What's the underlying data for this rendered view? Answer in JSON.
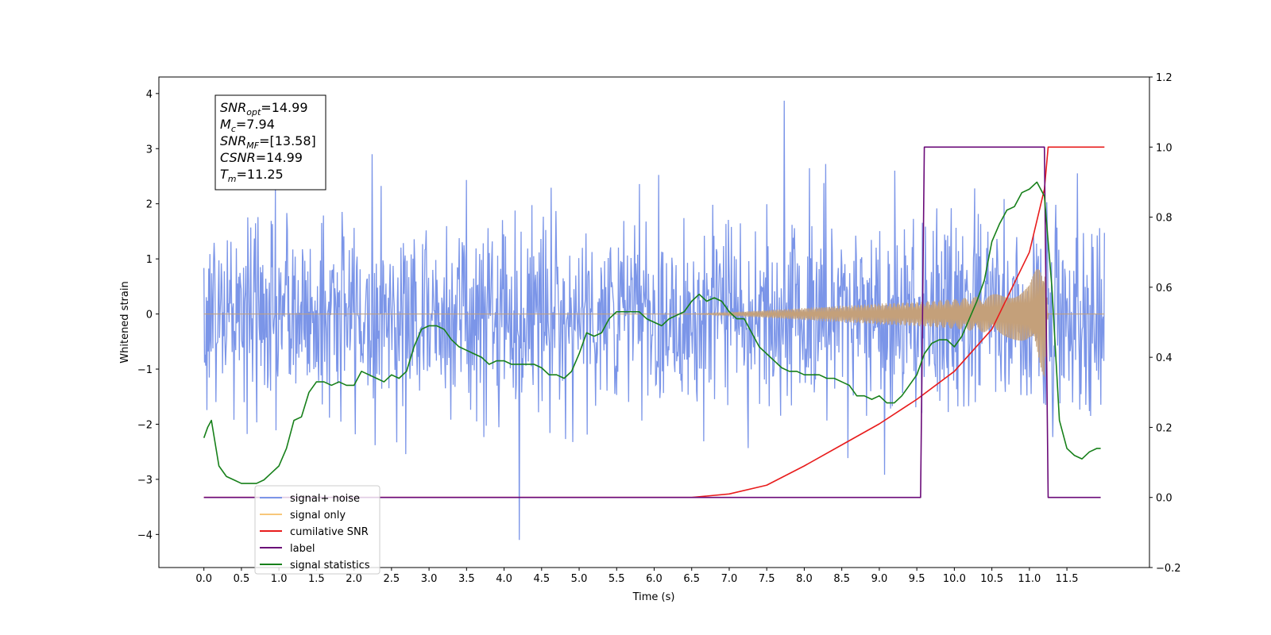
{
  "chart_data": {
    "type": "line",
    "title": "",
    "xlabel": "Time (s)",
    "ylabel": "Whitened strain",
    "y2label": "",
    "xlim": [
      -0.6,
      12.6
    ],
    "ylim": [
      -4.6,
      4.3
    ],
    "y2lim": [
      -0.2,
      1.2
    ],
    "xticks": [
      0.0,
      0.5,
      1.0,
      1.5,
      2.0,
      2.5,
      3.0,
      3.5,
      4.0,
      4.5,
      5.0,
      5.5,
      6.0,
      6.5,
      7.0,
      7.5,
      8.0,
      8.5,
      9.0,
      9.5,
      10.0,
      10.5,
      11.0,
      11.5
    ],
    "xtick_labels": [
      "0.0",
      "0.5",
      "1.0",
      "1.5",
      "2.0",
      "2.5",
      "3.0",
      "3.5",
      "4.0",
      "4.5",
      "5.0",
      "5.5",
      "6.0",
      "6.5",
      "7.0",
      "7.5",
      "8.0",
      "8.5",
      "9.0",
      "9.5",
      "10.0",
      "10.5",
      "11.0",
      "11.5"
    ],
    "yticks": [
      -4,
      -3,
      -2,
      -1,
      0,
      1,
      2,
      3,
      4
    ],
    "ytick_labels": [
      "−4",
      "−3",
      "−2",
      "−1",
      "0",
      "1",
      "2",
      "3",
      "4"
    ],
    "y2ticks": [
      -0.2,
      0.0,
      0.2,
      0.4,
      0.6,
      0.8,
      1.0,
      1.2
    ],
    "y2tick_labels": [
      "−0.2",
      "0.0",
      "0.2",
      "0.4",
      "0.6",
      "0.8",
      "1.0",
      "1.2"
    ],
    "grid": false,
    "legend_position": "bottom-left",
    "info_box": {
      "lines": [
        {
          "main": "SNR",
          "sub": "opt",
          "value": "=14.99"
        },
        {
          "main": "M",
          "sub": "c",
          "value": "=7.94"
        },
        {
          "main": "SNR",
          "sub": "MF",
          "value": "=[13.58]"
        },
        {
          "main": "CSNR",
          "sub": "",
          "value": "=14.99"
        },
        {
          "main": "T",
          "sub": "m",
          "value": "=11.25"
        }
      ]
    },
    "legend": [
      {
        "label": "signal+ noise",
        "color": "#7b95e8"
      },
      {
        "label": "signal only",
        "color": "#f8c77a"
      },
      {
        "label": "cumilative SNR",
        "color": "#e81c1c"
      },
      {
        "label": "label",
        "color": "#6a0a78"
      },
      {
        "label": "signal statistics",
        "color": "#17801a"
      }
    ],
    "series": [
      {
        "name": "signal+ noise",
        "axis": "left",
        "color": "#7b95e8",
        "kind": "noise",
        "x_range": [
          0.0,
          12.0
        ],
        "sample_count": 1500,
        "typical_amplitude": 0.9,
        "max": 3.87,
        "min": -4.1
      },
      {
        "name": "signal only",
        "axis": "left",
        "color": "#c4a07a",
        "kind": "chirp-envelope",
        "x": [
          0.0,
          6.5,
          7.0,
          7.5,
          8.0,
          8.5,
          9.0,
          9.5,
          10.0,
          10.5,
          11.0,
          11.2,
          11.25,
          12.0
        ],
        "envelope": [
          0.0,
          0.0,
          0.03,
          0.07,
          0.11,
          0.15,
          0.19,
          0.22,
          0.27,
          0.35,
          0.55,
          1.15,
          0.0,
          0.0
        ]
      },
      {
        "name": "cumilative SNR",
        "axis": "right",
        "color": "#e81c1c",
        "x": [
          0.0,
          6.0,
          6.5,
          7.0,
          7.5,
          8.0,
          8.5,
          9.0,
          9.5,
          10.0,
          10.5,
          11.0,
          11.2,
          11.25,
          12.0
        ],
        "values": [
          0.0,
          0.0,
          0.0,
          0.01,
          0.035,
          0.09,
          0.15,
          0.21,
          0.28,
          0.36,
          0.48,
          0.7,
          0.88,
          1.0,
          1.0
        ]
      },
      {
        "name": "label",
        "axis": "right",
        "color": "#6a0a78",
        "x": [
          0.0,
          9.55,
          9.6,
          11.2,
          11.25,
          11.95
        ],
        "values": [
          0.0,
          0.0,
          1.0,
          1.0,
          0.0,
          0.0
        ]
      },
      {
        "name": "signal statistics",
        "axis": "right",
        "color": "#17801a",
        "x": [
          0.0,
          0.05,
          0.1,
          0.2,
          0.3,
          0.4,
          0.5,
          0.6,
          0.7,
          0.8,
          0.9,
          1.0,
          1.1,
          1.2,
          1.3,
          1.4,
          1.5,
          1.6,
          1.7,
          1.8,
          1.9,
          2.0,
          2.1,
          2.2,
          2.3,
          2.4,
          2.5,
          2.6,
          2.7,
          2.8,
          2.9,
          3.0,
          3.1,
          3.2,
          3.3,
          3.4,
          3.5,
          3.6,
          3.7,
          3.8,
          3.9,
          4.0,
          4.1,
          4.2,
          4.3,
          4.4,
          4.5,
          4.6,
          4.7,
          4.8,
          4.9,
          5.0,
          5.1,
          5.2,
          5.3,
          5.4,
          5.5,
          5.6,
          5.7,
          5.8,
          5.9,
          6.0,
          6.1,
          6.2,
          6.3,
          6.4,
          6.5,
          6.6,
          6.7,
          6.8,
          6.9,
          7.0,
          7.1,
          7.2,
          7.3,
          7.4,
          7.5,
          7.6,
          7.7,
          7.8,
          7.9,
          8.0,
          8.1,
          8.2,
          8.3,
          8.4,
          8.5,
          8.6,
          8.7,
          8.8,
          8.9,
          9.0,
          9.1,
          9.2,
          9.3,
          9.4,
          9.5,
          9.6,
          9.7,
          9.8,
          9.9,
          10.0,
          10.1,
          10.2,
          10.3,
          10.4,
          10.5,
          10.6,
          10.7,
          10.8,
          10.9,
          11.0,
          11.1,
          11.2,
          11.3,
          11.4,
          11.5,
          11.6,
          11.7,
          11.8,
          11.9,
          11.95
        ],
        "values": [
          0.17,
          0.2,
          0.22,
          0.09,
          0.06,
          0.05,
          0.04,
          0.04,
          0.04,
          0.05,
          0.07,
          0.09,
          0.14,
          0.22,
          0.23,
          0.3,
          0.33,
          0.33,
          0.32,
          0.33,
          0.32,
          0.32,
          0.36,
          0.35,
          0.34,
          0.33,
          0.35,
          0.34,
          0.36,
          0.43,
          0.48,
          0.49,
          0.49,
          0.48,
          0.45,
          0.43,
          0.42,
          0.41,
          0.4,
          0.38,
          0.39,
          0.39,
          0.38,
          0.38,
          0.38,
          0.38,
          0.37,
          0.35,
          0.35,
          0.34,
          0.36,
          0.41,
          0.47,
          0.46,
          0.47,
          0.51,
          0.53,
          0.53,
          0.53,
          0.53,
          0.51,
          0.5,
          0.49,
          0.51,
          0.52,
          0.53,
          0.56,
          0.58,
          0.56,
          0.57,
          0.56,
          0.53,
          0.51,
          0.51,
          0.47,
          0.43,
          0.41,
          0.39,
          0.37,
          0.36,
          0.36,
          0.35,
          0.35,
          0.35,
          0.34,
          0.34,
          0.33,
          0.32,
          0.29,
          0.29,
          0.28,
          0.29,
          0.27,
          0.27,
          0.29,
          0.32,
          0.35,
          0.41,
          0.44,
          0.45,
          0.45,
          0.43,
          0.46,
          0.51,
          0.56,
          0.62,
          0.73,
          0.78,
          0.82,
          0.83,
          0.87,
          0.88,
          0.9,
          0.86,
          0.6,
          0.22,
          0.14,
          0.12,
          0.11,
          0.13,
          0.14,
          0.14
        ]
      }
    ]
  }
}
